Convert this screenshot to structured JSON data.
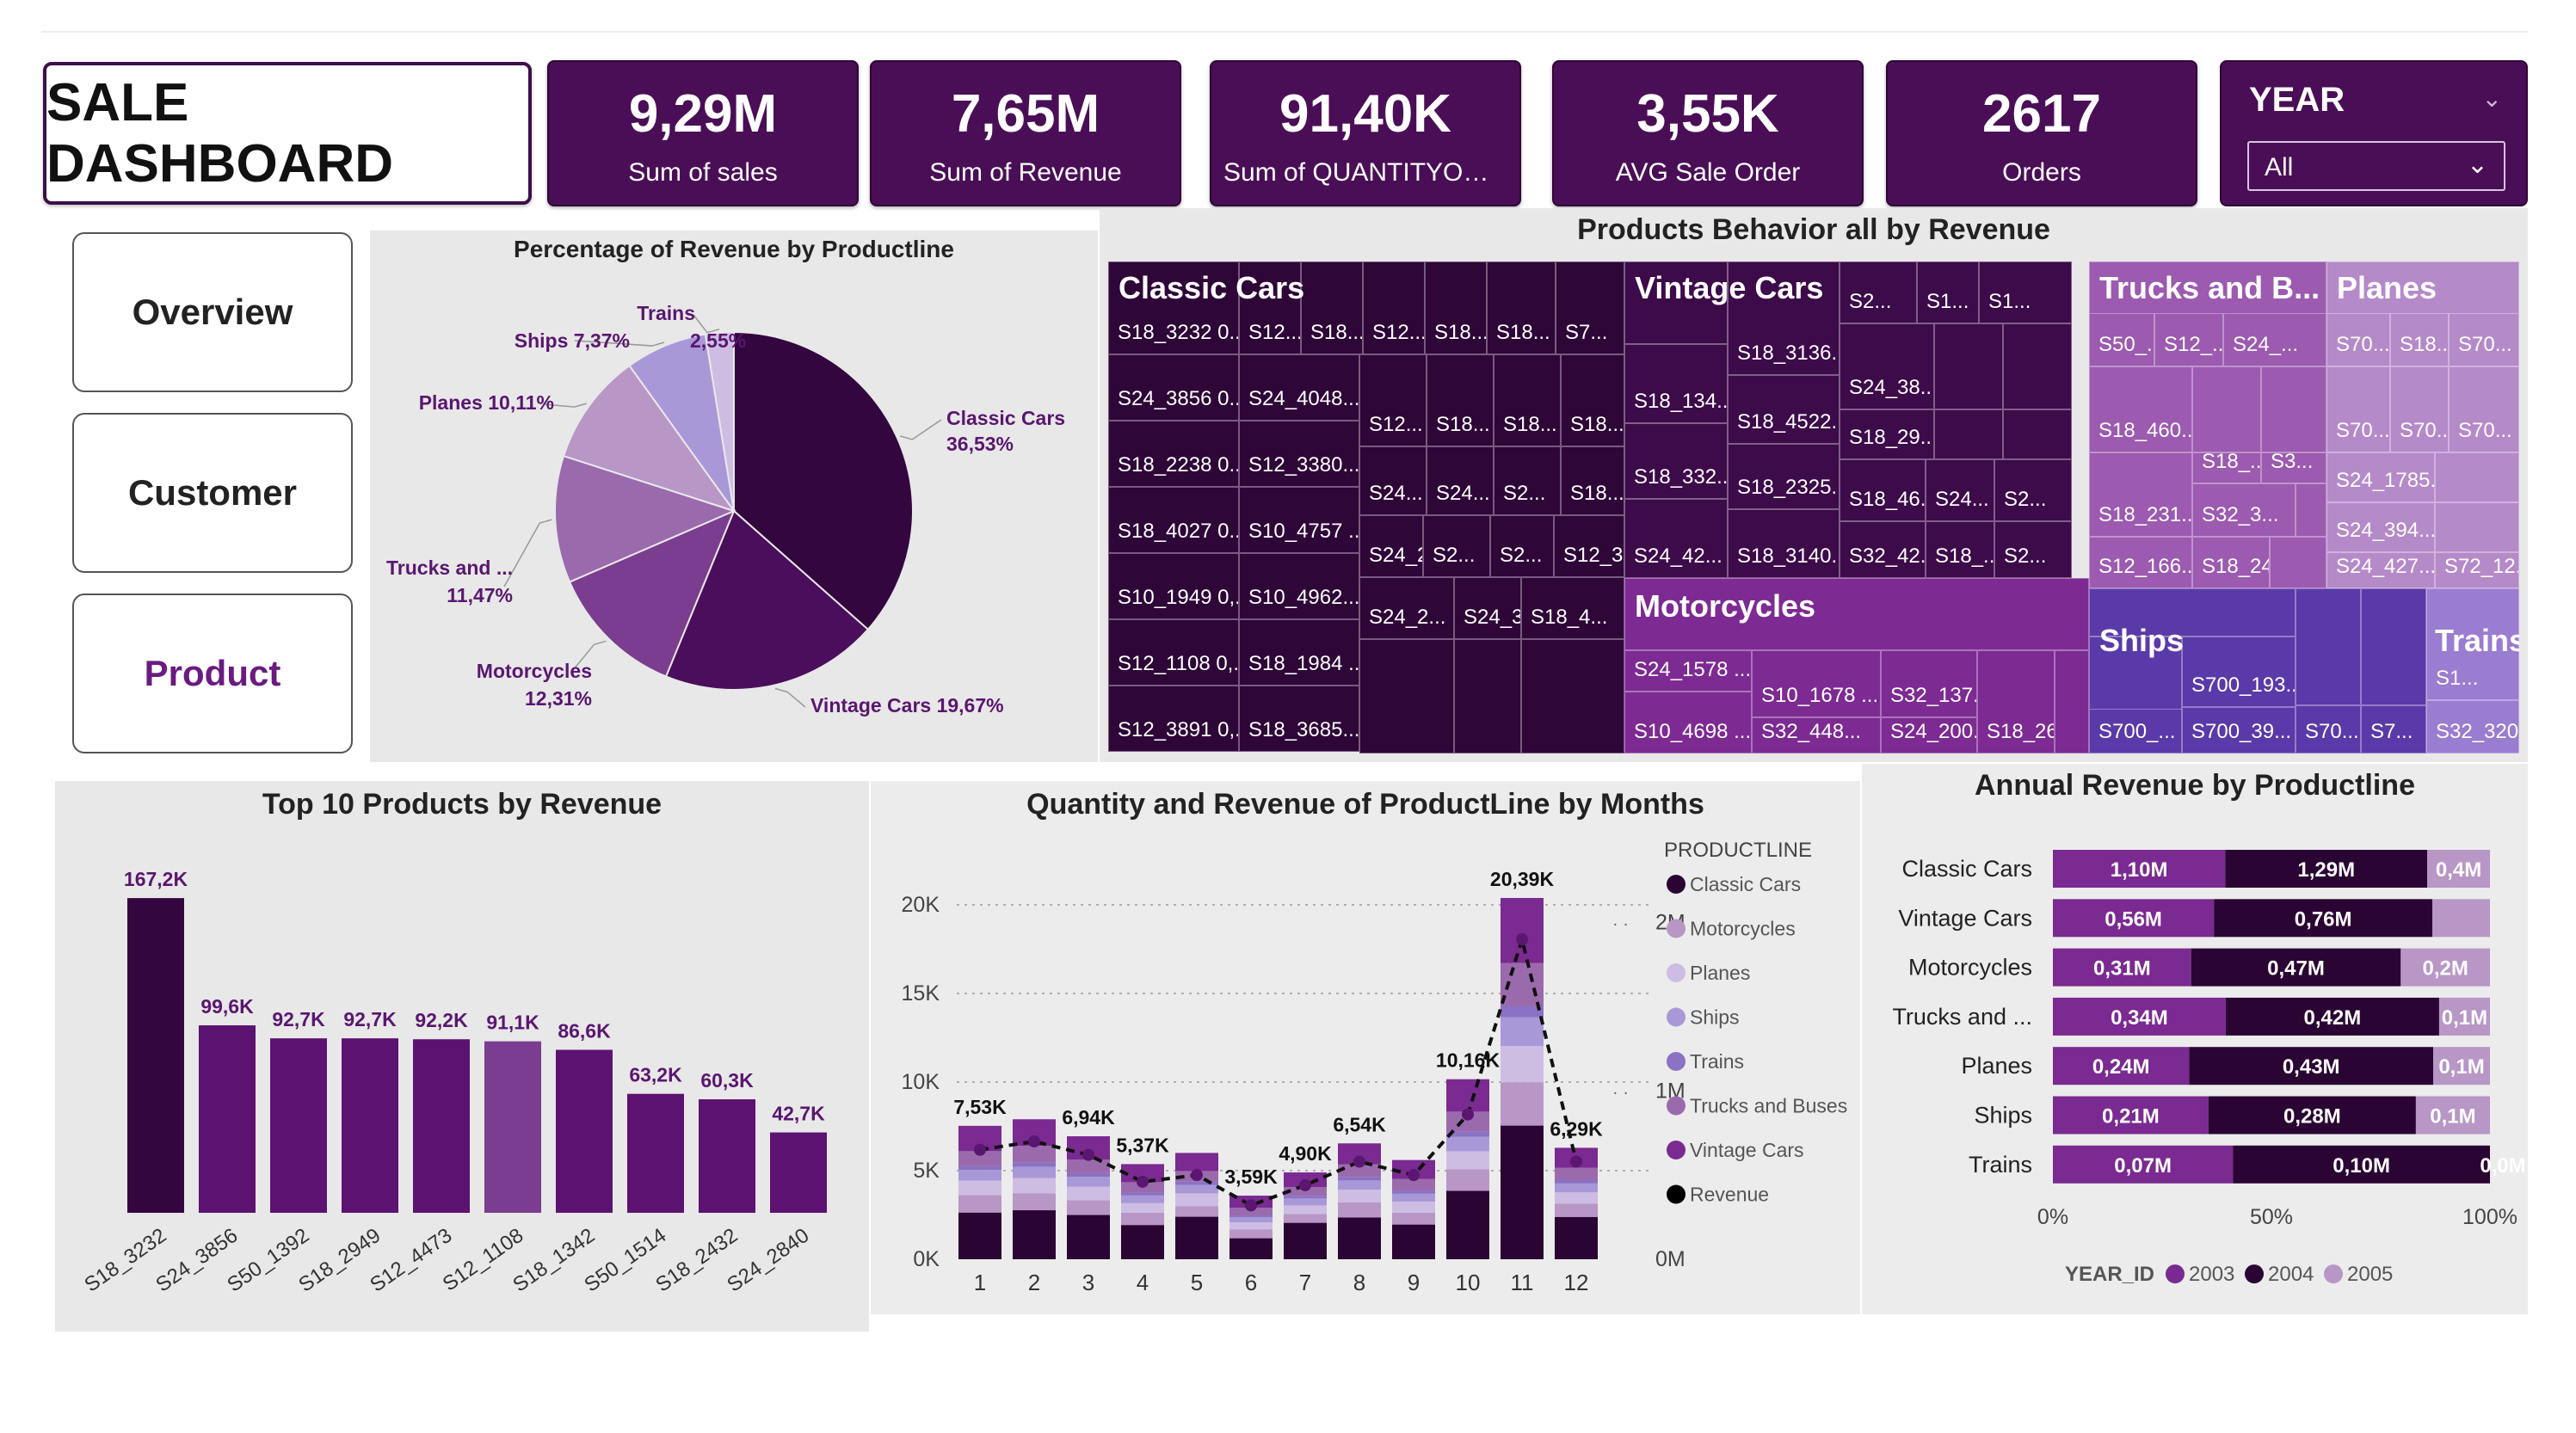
{
  "header": {
    "title": "SALE DASHBOARD",
    "kpis": [
      {
        "value": "9,29M",
        "label": "Sum of sales"
      },
      {
        "value": "7,65M",
        "label": "Sum of Revenue"
      },
      {
        "value": "91,40K",
        "label": "Sum of QUANTITYORDE..."
      },
      {
        "value": "3,55K",
        "label": "AVG Sale Order"
      },
      {
        "value": "2617",
        "label": "Orders"
      }
    ],
    "year_filter": {
      "label": "YEAR",
      "value": "All"
    }
  },
  "nav": {
    "items": [
      "Overview",
      "Customer",
      "Product"
    ],
    "active": "Product"
  },
  "pie": {
    "title": "Percentage of Revenue by Productline",
    "slices": [
      {
        "name": "Classic Cars",
        "pct": "36,53%",
        "value": 36.53,
        "color": "#33063f"
      },
      {
        "name": "Vintage Cars",
        "pct": "19,67%",
        "value": 19.67,
        "color": "#4a0e5c"
      },
      {
        "name": "Motorcycles",
        "pct": "12,31%",
        "value": 12.31,
        "color": "#7a3d8f"
      },
      {
        "name": "Trucks and ...",
        "pct": "11,47%",
        "value": 11.47,
        "color": "#9b6aad"
      },
      {
        "name": "Planes",
        "pct": "10,11%",
        "value": 10.11,
        "color": "#b896c6"
      },
      {
        "name": "Ships",
        "pct": "7,37%",
        "value": 7.37,
        "color": "#a998d8"
      },
      {
        "name": "Trains",
        "pct": "2,55%",
        "value": 2.55,
        "color": "#cdbde3"
      }
    ]
  },
  "treemap": {
    "title": "Products Behavior all by Revenue",
    "groups": [
      {
        "name": "Classic Cars",
        "cells": [
          "S18_3232 0...",
          "S24_3856 0...",
          "S18_2238 0...",
          "S18_4027 0...",
          "S10_1949 0,...",
          "S12_1108 0,...",
          "S12_3891 0,...",
          "S12...",
          "S18...",
          "S12...",
          "S18...",
          "S18...",
          "S7...",
          "S24_4048...",
          "S12_3380...",
          "S10_4757 ...",
          "S10_4962...",
          "S18_1984 ...",
          "S18_3685...",
          "S12...",
          "S18...",
          "S18...",
          "S18...",
          "S24...",
          "S24...",
          "S2...",
          "S18...",
          "S24_28...",
          "S2...",
          "S2...",
          "S12_39...",
          "S24_2...",
          "S24_31...",
          "S18_4..."
        ]
      },
      {
        "name": "Vintage Cars",
        "cells": [
          "S18_134...",
          "S18_332...",
          "S24_42...",
          "S18_3136...",
          "S18_4522...",
          "S18_2325...",
          "S18_3140...",
          "S2...",
          "S1...",
          "S1...",
          "S24_38...",
          "S18_29...",
          "S18_46...",
          "S24...",
          "S2...",
          "S32_42...",
          "S18_...",
          "S2..."
        ]
      },
      {
        "name": "Motorcycles",
        "cells": [
          "S24_1578 ...",
          "S10_4698 ...",
          "S10_1678 ...",
          "S32_448...",
          "S32_137...",
          "S24_200...",
          "S18_26..."
        ]
      },
      {
        "name": "Trucks and B...",
        "cells": [
          "S50_...",
          "S12_...",
          "S24_...",
          "S18_460...",
          "S18_231...",
          "S18_...",
          "S3...",
          "S32_3...",
          "S12_166...",
          "S18_24..."
        ]
      },
      {
        "name": "Planes",
        "cells": [
          "S70...",
          "S18...",
          "S70...",
          "S70...",
          "S70...",
          "S70...",
          "S24_1785...",
          "S24_394...",
          "S24_427...",
          "S72_12..."
        ]
      },
      {
        "name": "Ships",
        "cells": [
          "S700_193...",
          "S700_...",
          "S700_39...",
          "S70...",
          "S7..."
        ]
      },
      {
        "name": "Trains",
        "cells": [
          "S1...",
          "S32_320..."
        ]
      }
    ]
  },
  "top10": {
    "title": "Top 10 Products by Revenue",
    "chart_data": {
      "type": "bar",
      "categories": [
        "S18_3232",
        "S24_3856",
        "S50_1392",
        "S18_2949",
        "S12_4473",
        "S12_1108",
        "S18_1342",
        "S50_1514",
        "S18_2432",
        "S24_2840"
      ],
      "values": [
        167.2,
        99.6,
        92.7,
        92.7,
        92.2,
        91.1,
        86.6,
        63.2,
        60.3,
        42.7
      ],
      "labels": [
        "167,2K",
        "99,6K",
        "92,7K",
        "92,7K",
        "92,2K",
        "91,1K",
        "86,6K",
        "63,2K",
        "60,3K",
        "42,7K"
      ],
      "colors": [
        "#33063f",
        "#5c1270",
        "#5c1270",
        "#5c1270",
        "#5c1270",
        "#7a3d8f",
        "#5c1270",
        "#5c1270",
        "#5c1270",
        "#5c1270"
      ],
      "ylim": [
        0,
        170
      ]
    }
  },
  "combo": {
    "title": "Quantity and Revenue of ProductLine by Months",
    "legend_title": "PRODUCTLINE",
    "chart_data": {
      "type": "bar",
      "categories": [
        "1",
        "2",
        "3",
        "4",
        "5",
        "6",
        "7",
        "8",
        "9",
        "10",
        "11",
        "12"
      ],
      "totals": [
        7.53,
        7.9,
        6.94,
        5.37,
        6.0,
        3.59,
        4.9,
        6.54,
        5.6,
        10.16,
        20.39,
        6.29
      ],
      "total_labels": [
        "7,53K",
        "",
        "6,94K",
        "5,37K",
        "",
        "3,59K",
        "4,90K",
        "6,54K",
        "",
        "10,16K",
        "20,39K",
        "6,29K"
      ],
      "series": [
        {
          "name": "Classic Cars",
          "color": "#2a0433",
          "shares": [
            0.35,
            0.35,
            0.36,
            0.36,
            0.4,
            0.33,
            0.42,
            0.36,
            0.35,
            0.38,
            0.37,
            0.38
          ]
        },
        {
          "name": "Motorcycles",
          "color": "#b896c6",
          "shares": [
            0.13,
            0.12,
            0.12,
            0.13,
            0.1,
            0.14,
            0.1,
            0.13,
            0.12,
            0.12,
            0.12,
            0.12
          ]
        },
        {
          "name": "Planes",
          "color": "#cdbde3",
          "shares": [
            0.11,
            0.11,
            0.11,
            0.1,
            0.12,
            0.11,
            0.1,
            0.11,
            0.11,
            0.1,
            0.1,
            0.1
          ]
        },
        {
          "name": "Ships",
          "color": "#a998d8",
          "shares": [
            0.08,
            0.08,
            0.08,
            0.08,
            0.08,
            0.08,
            0.08,
            0.08,
            0.08,
            0.08,
            0.08,
            0.08
          ]
        },
        {
          "name": "Trains",
          "color": "#8a72c4",
          "shares": [
            0.03,
            0.03,
            0.03,
            0.03,
            0.03,
            0.03,
            0.03,
            0.03,
            0.03,
            0.03,
            0.03,
            0.03
          ]
        },
        {
          "name": "Trucks and Buses",
          "color": "#9b6aad",
          "shares": [
            0.11,
            0.12,
            0.11,
            0.11,
            0.1,
            0.12,
            0.1,
            0.11,
            0.12,
            0.11,
            0.12,
            0.11
          ]
        },
        {
          "name": "Vintage Cars",
          "color": "#7a2a90",
          "shares": [
            0.19,
            0.19,
            0.19,
            0.19,
            0.17,
            0.19,
            0.17,
            0.18,
            0.19,
            0.18,
            0.18,
            0.18
          ]
        }
      ],
      "revenue_series": {
        "name": "Revenue",
        "color": "#000000"
      },
      "revenue_m": [
        0.65,
        0.7,
        0.62,
        0.46,
        0.5,
        0.32,
        0.44,
        0.58,
        0.5,
        0.86,
        1.9,
        0.58
      ],
      "y_left_ticks": [
        "0K",
        "5K",
        "10K",
        "15K",
        "20K"
      ],
      "y_right_ticks": [
        "0M",
        "1M",
        "2M"
      ],
      "ylim_left": [
        0,
        20
      ],
      "ylim_right": [
        0,
        2
      ]
    }
  },
  "annual": {
    "title": "Annual Revenue by Productline",
    "chart_data": {
      "type": "bar",
      "categories": [
        "Classic Cars",
        "Vintage Cars",
        "Motorcycles",
        "Trucks and ...",
        "Planes",
        "Ships",
        "Trains"
      ],
      "series": [
        {
          "name": "2003",
          "color": "#7a2a90",
          "values": [
            1.1,
            0.56,
            0.31,
            0.34,
            0.24,
            0.21,
            0.07
          ],
          "labels": [
            "1,10M",
            "0,56M",
            "0,31M",
            "0,34M",
            "0,24M",
            "0,21M",
            "0,07M"
          ]
        },
        {
          "name": "2004",
          "color": "#2a0433",
          "values": [
            1.29,
            0.76,
            0.47,
            0.42,
            0.43,
            0.28,
            0.1
          ],
          "labels": [
            "1,29M",
            "0,76M",
            "0,47M",
            "0,42M",
            "0,43M",
            "0,28M",
            "0,10M"
          ]
        },
        {
          "name": "2005",
          "color": "#b896c6",
          "values": [
            0.4,
            0.2,
            0.2,
            0.1,
            0.1,
            0.1,
            0.0
          ],
          "labels": [
            "0,4M",
            "",
            "0,2M",
            "0,1M",
            "0,1M",
            "0,1M",
            "0,0M"
          ]
        }
      ],
      "x_ticks": [
        "0%",
        "50%",
        "100%"
      ],
      "legend_title": "YEAR_ID"
    }
  }
}
